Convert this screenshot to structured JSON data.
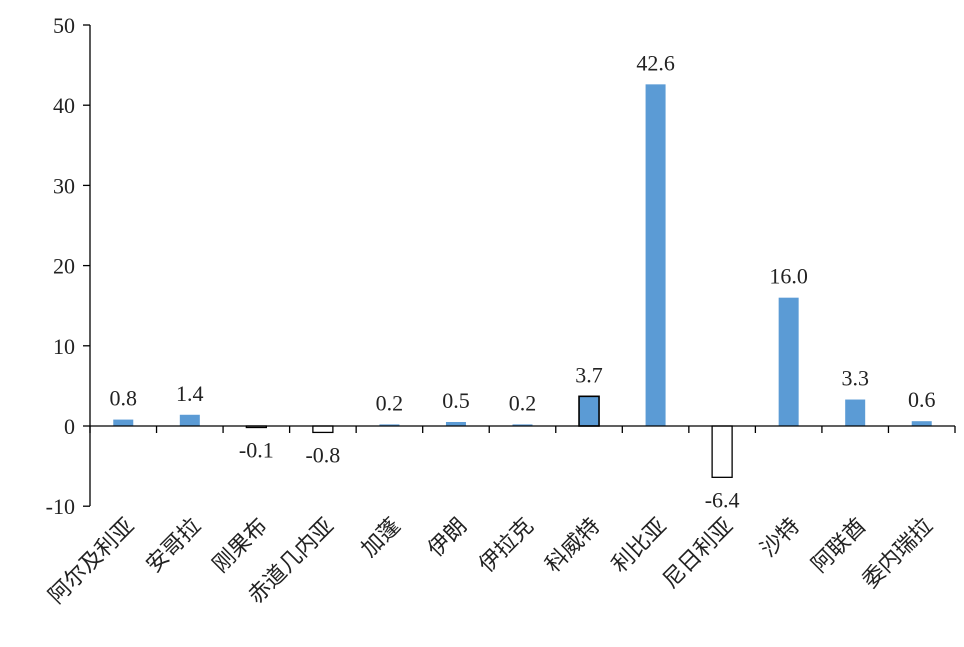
{
  "chart_data": {
    "type": "bar",
    "categories": [
      "阿尔及利亚",
      "安哥拉",
      "刚果布",
      "赤道几内亚",
      "加蓬",
      "伊朗",
      "伊拉克",
      "科威特",
      "利比亚",
      "尼日利亚",
      "沙特",
      "阿联酋",
      "委内瑞拉"
    ],
    "values": [
      0.8,
      1.4,
      -0.1,
      -0.8,
      0.2,
      0.5,
      0.2,
      3.7,
      42.6,
      -6.4,
      16.0,
      3.3,
      0.6
    ],
    "data_labels": [
      "0.8",
      "1.4",
      "-0.1",
      "-0.8",
      "0.2",
      "0.5",
      "0.2",
      "3.7",
      "42.6",
      "-6.4",
      "16.0",
      "3.3",
      "0.6"
    ],
    "highlight_index": 7,
    "ylim": [
      -10,
      50
    ],
    "yticks": [
      -10,
      0,
      10,
      20,
      30,
      40,
      50
    ],
    "ytick_labels": [
      "-10",
      "0",
      "10",
      "20",
      "30",
      "40",
      "50"
    ],
    "title": "",
    "xlabel": "",
    "ylabel": "",
    "grid": false,
    "colors": {
      "positive": "#5b9bd5",
      "negative": "#ffffff",
      "outline": "#000000",
      "axis": "#000000"
    }
  }
}
